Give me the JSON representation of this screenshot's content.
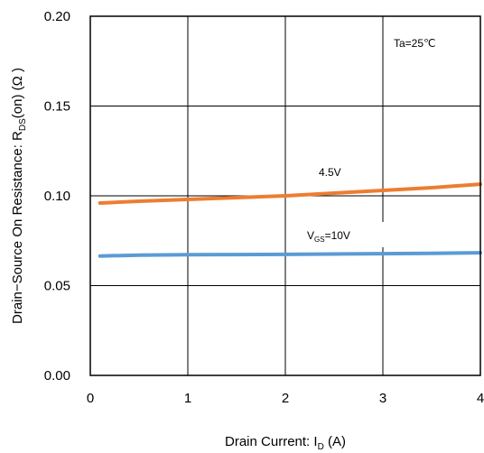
{
  "chart_data": {
    "type": "line",
    "xlabel": {
      "main": "Drain Current: I",
      "sub": "D",
      "tail": " (A)"
    },
    "ylabel": {
      "main": "Drain−Source On Resistance: R",
      "sub": "DS",
      "tail": "(on) (Ω )"
    },
    "xlim": [
      0,
      4
    ],
    "ylim": [
      0,
      0.2
    ],
    "x_ticks": [
      0,
      1,
      2,
      3,
      4
    ],
    "x_tick_labels": [
      "0",
      "1",
      "2",
      "3",
      "4"
    ],
    "y_ticks": [
      0,
      0.05,
      0.1,
      0.15,
      0.2
    ],
    "y_tick_labels": [
      "0.00",
      "0.05",
      "0.10",
      "0.15",
      "0.20"
    ],
    "grid": true,
    "annotations": {
      "temperature": "Ta=25℃",
      "vgs_4v5": "4.5V",
      "vgs_10v": {
        "main": "V",
        "sub": "GS",
        "tail": "=10V"
      }
    },
    "series": [
      {
        "name": "4.5V",
        "color": "#ED7D31",
        "x": [
          0.1,
          0.5,
          1.0,
          1.5,
          2.0,
          2.5,
          3.0,
          3.5,
          4.0
        ],
        "y": [
          0.096,
          0.097,
          0.098,
          0.099,
          0.1,
          0.1015,
          0.103,
          0.1045,
          0.1065
        ]
      },
      {
        "name": "VGS=10V",
        "color": "#5B9BD5",
        "x": [
          0.1,
          0.5,
          1.0,
          1.5,
          2.0,
          2.5,
          3.0,
          3.5,
          4.0
        ],
        "y": [
          0.0665,
          0.067,
          0.0672,
          0.0673,
          0.0674,
          0.0676,
          0.0678,
          0.068,
          0.0683
        ]
      }
    ]
  }
}
